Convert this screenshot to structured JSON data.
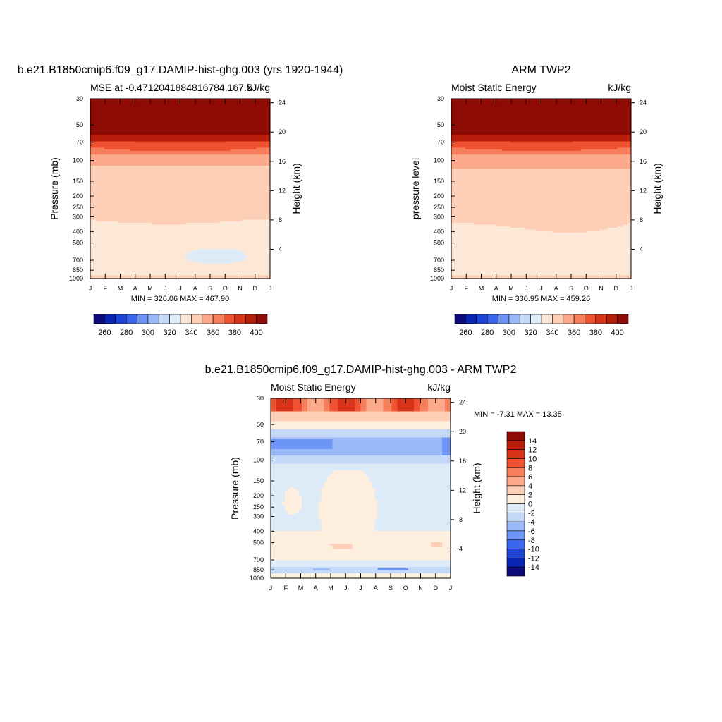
{
  "page": {},
  "chart_data": [
    {
      "type": "heatmap",
      "id": "p1",
      "title": "b.e21.B1850cmip6.f09_g17.DAMIP-hist-ghg.003 (yrs 1920-1944)",
      "left_string": "MSE at -0.4712041884816784,167.5",
      "right_string": "kJ/kg",
      "ylabel": "Pressure (mb)",
      "ylabel_right": "Height (km)",
      "x_ticks": [
        "J",
        "F",
        "M",
        "A",
        "M",
        "J",
        "J",
        "A",
        "S",
        "O",
        "N",
        "D",
        "J"
      ],
      "y_ticks": [
        30,
        50,
        70,
        100,
        150,
        200,
        250,
        300,
        400,
        500,
        700,
        850,
        1000
      ],
      "y_ticks_right": [
        24,
        20,
        16,
        12,
        8,
        4
      ],
      "ylim": [
        1000,
        30
      ],
      "stats": "MIN = 326.06 MAX = 467.90",
      "levels": [
        260,
        270,
        280,
        290,
        300,
        310,
        320,
        330,
        340,
        350,
        360,
        370,
        380,
        390,
        400
      ],
      "colorbar_labels": [
        260,
        280,
        300,
        320,
        340,
        360,
        380,
        400
      ],
      "colorbar_orientation": "horizontal",
      "field": "mse_model"
    },
    {
      "type": "heatmap",
      "id": "p2",
      "title": "ARM TWP2",
      "left_string": "Moist Static Energy",
      "right_string": "kJ/kg",
      "ylabel": "pressure level",
      "ylabel_right": "Height (km)",
      "x_ticks": [
        "J",
        "F",
        "M",
        "A",
        "M",
        "J",
        "J",
        "A",
        "S",
        "O",
        "N",
        "D",
        "J"
      ],
      "y_ticks": [
        30,
        50,
        70,
        100,
        150,
        200,
        250,
        300,
        400,
        500,
        700,
        850,
        1000
      ],
      "y_ticks_right": [
        24,
        20,
        16,
        12,
        8,
        4
      ],
      "ylim": [
        1000,
        30
      ],
      "stats": "MIN = 330.95 MAX = 459.26",
      "levels": [
        260,
        270,
        280,
        290,
        300,
        310,
        320,
        330,
        340,
        350,
        360,
        370,
        380,
        390,
        400
      ],
      "colorbar_labels": [
        260,
        280,
        300,
        320,
        340,
        360,
        380,
        400
      ],
      "colorbar_orientation": "horizontal",
      "field": "mse_obs"
    },
    {
      "type": "heatmap",
      "id": "p3",
      "title": "b.e21.B1850cmip6.f09_g17.DAMIP-hist-ghg.003 - ARM TWP2",
      "left_string": "Moist Static Energy",
      "right_string": "kJ/kg",
      "ylabel": "Pressure (mb)",
      "ylabel_right": "Height (km)",
      "x_ticks": [
        "J",
        "F",
        "M",
        "A",
        "M",
        "J",
        "J",
        "A",
        "S",
        "O",
        "N",
        "D",
        "J"
      ],
      "y_ticks": [
        30,
        50,
        70,
        100,
        150,
        200,
        250,
        300,
        400,
        500,
        700,
        850,
        1000
      ],
      "y_ticks_right": [
        24,
        20,
        16,
        12,
        8,
        4
      ],
      "ylim": [
        1000,
        30
      ],
      "stats": "MIN =  -7.31 MAX =  13.35",
      "levels": [
        -14,
        -12,
        -10,
        -8,
        -6,
        -4,
        -2,
        0,
        2,
        4,
        6,
        8,
        10,
        12,
        14
      ],
      "colorbar_labels": [
        14,
        12,
        10,
        8,
        6,
        4,
        2,
        0,
        -2,
        -4,
        -6,
        -8,
        -10,
        -12,
        -14
      ],
      "colorbar_orientation": "vertical",
      "field": "mse_diff"
    }
  ],
  "colors": {
    "main": [
      "#0a0a78",
      "#0a24b4",
      "#1c46d8",
      "#3a66f0",
      "#6d95f5",
      "#9bb8f7",
      "#c4d8f8",
      "#ddeaf8",
      "#fde8d8",
      "#fdcfb6",
      "#fba88a",
      "#f67e5a",
      "#ee5230",
      "#d8341a",
      "#b81e0c",
      "#8e0a04"
    ],
    "diff": [
      "#0a0a78",
      "#0a24b4",
      "#1c46d8",
      "#3a66f0",
      "#6d95f5",
      "#9bb8f7",
      "#c4d8f8",
      "#ddeaf8",
      "#fdeede",
      "#fdcfb6",
      "#fba88a",
      "#f67e5a",
      "#ee5230",
      "#d8341a",
      "#b81e0c",
      "#8e0a04"
    ]
  }
}
